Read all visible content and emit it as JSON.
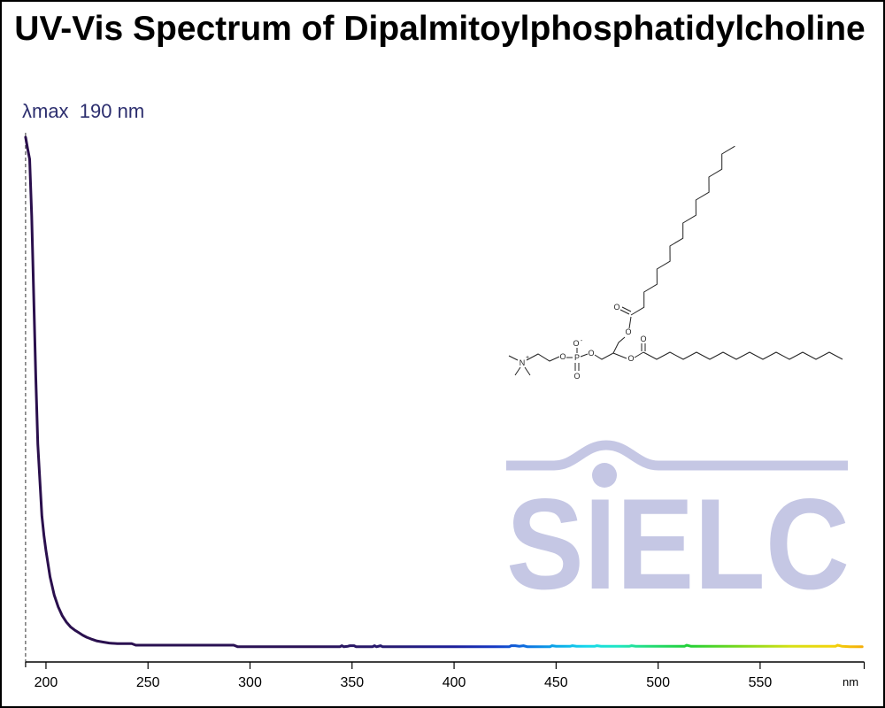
{
  "chart_data": {
    "type": "line",
    "title": "UV-Vis Spectrum of Dipalmitoylphosphatidylcholine",
    "xlabel": "nm",
    "ylabel": "",
    "xlim": [
      190,
      601
    ],
    "ylim": [
      0,
      1
    ],
    "x_ticks": [
      200,
      250,
      300,
      350,
      400,
      450,
      500,
      550
    ],
    "y_axis_visible": false,
    "grid": false,
    "annotations": [
      {
        "text": "λmax  190 nm",
        "x": 190,
        "color": "#2c2e6e"
      }
    ],
    "series": [
      {
        "x": [
          190,
          191,
          192,
          193,
          194,
          195,
          196,
          197,
          198,
          199,
          200,
          202,
          204,
          206,
          208,
          210,
          212,
          214,
          216,
          218,
          220,
          222,
          225,
          228,
          231,
          235,
          240,
          242,
          244,
          250,
          270,
          290,
          292,
          294,
          300,
          340,
          344,
          345,
          346,
          348,
          349,
          351,
          352,
          360,
          361,
          362,
          364,
          365,
          400,
          427,
          428,
          430,
          432,
          434,
          436,
          447,
          448,
          450,
          457,
          458,
          460,
          469,
          470,
          472,
          486,
          487,
          489,
          513,
          514,
          516,
          587,
          588,
          590,
          594,
          600
        ],
        "y": [
          1.0,
          0.978,
          0.958,
          0.85,
          0.696,
          0.543,
          0.415,
          0.346,
          0.278,
          0.241,
          0.212,
          0.162,
          0.128,
          0.105,
          0.088,
          0.076,
          0.067,
          0.061,
          0.056,
          0.051,
          0.047,
          0.044,
          0.04,
          0.038,
          0.036,
          0.035,
          0.035,
          0.035,
          0.032,
          0.032,
          0.032,
          0.032,
          0.032,
          0.029,
          0.029,
          0.029,
          0.029,
          0.031,
          0.029,
          0.03,
          0.031,
          0.031,
          0.029,
          0.029,
          0.031,
          0.029,
          0.031,
          0.029,
          0.029,
          0.029,
          0.031,
          0.031,
          0.03,
          0.031,
          0.029,
          0.029,
          0.031,
          0.03,
          0.03,
          0.031,
          0.03,
          0.03,
          0.031,
          0.03,
          0.03,
          0.031,
          0.03,
          0.03,
          0.032,
          0.03,
          0.03,
          0.032,
          0.03,
          0.029,
          0.029
        ]
      }
    ],
    "line_colors": [
      {
        "nm": 190,
        "color": "#2a0f4c"
      },
      {
        "nm": 330,
        "color": "#2a1257"
      },
      {
        "nm": 370,
        "color": "#261a72"
      },
      {
        "nm": 400,
        "color": "#1c1f9a"
      },
      {
        "nm": 420,
        "color": "#1538c4"
      },
      {
        "nm": 435,
        "color": "#0c6ee0"
      },
      {
        "nm": 450,
        "color": "#0aa6e8"
      },
      {
        "nm": 465,
        "color": "#14d8ec"
      },
      {
        "nm": 480,
        "color": "#1ee6c4"
      },
      {
        "nm": 495,
        "color": "#22dc7a"
      },
      {
        "nm": 515,
        "color": "#22d036"
      },
      {
        "nm": 540,
        "color": "#7ad81c"
      },
      {
        "nm": 565,
        "color": "#d6e014"
      },
      {
        "nm": 585,
        "color": "#f2d40c"
      },
      {
        "nm": 600,
        "color": "#f4ae08"
      }
    ]
  },
  "structure": {
    "labels": [
      "N",
      "+",
      "O",
      "P",
      "O",
      "-",
      "O",
      "O",
      "O",
      "O",
      "O",
      "O"
    ]
  },
  "watermark": {
    "text": "SIELC",
    "color": "#c5c7e4"
  }
}
